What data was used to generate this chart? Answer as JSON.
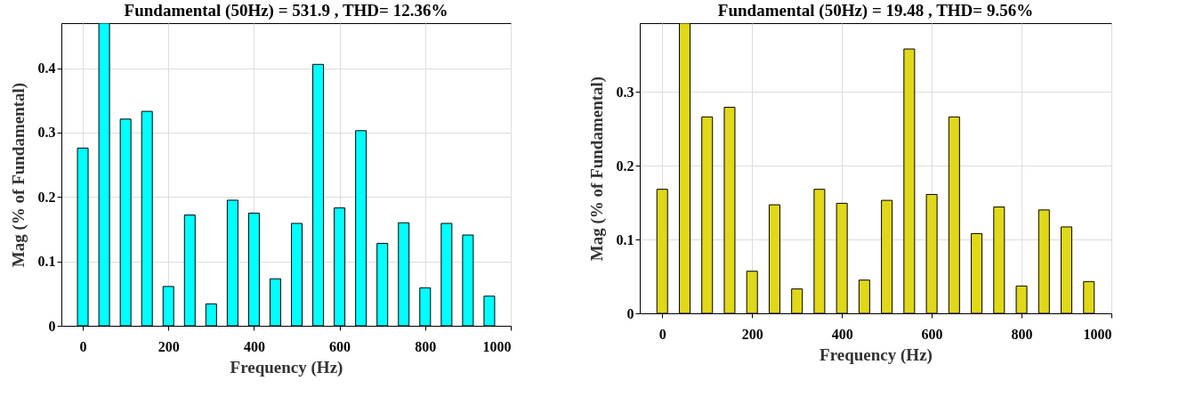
{
  "chart_data": [
    {
      "type": "bar",
      "title": "Fundamental (50Hz) = 531.9 , THD= 12.36%",
      "xlabel": "Frequency (Hz)",
      "ylabel": "Mag (% of Fundamental)",
      "x": [
        0,
        50,
        100,
        150,
        200,
        250,
        300,
        350,
        400,
        450,
        500,
        550,
        600,
        650,
        700,
        750,
        800,
        850,
        900,
        950
      ],
      "series": [
        {
          "color": "#00ffff",
          "values": [
            0.276,
            0.47,
            0.321,
            0.333,
            0.061,
            0.172,
            0.034,
            0.195,
            0.175,
            0.073,
            0.159,
            0.406,
            0.183,
            0.303,
            0.128,
            0.16,
            0.059,
            0.159,
            0.141,
            0.046
          ]
        }
      ],
      "xlim": [
        -50,
        1000
      ],
      "xticks": [
        0,
        200,
        400,
        600,
        800,
        1000
      ],
      "ylim": [
        0,
        0.47
      ],
      "yticks": [
        0,
        0.1,
        0.2,
        0.3,
        0.4
      ],
      "grid": true
    },
    {
      "type": "bar",
      "title": "Fundamental (50Hz) = 19.48 , THD= 9.56%",
      "xlabel": "Frequency (Hz)",
      "ylabel": "Mag (% of Fundamental)",
      "x": [
        0,
        50,
        100,
        150,
        200,
        250,
        300,
        350,
        400,
        450,
        500,
        550,
        600,
        650,
        700,
        750,
        800,
        850,
        900,
        950
      ],
      "series": [
        {
          "color": "#e0d818",
          "values": [
            0.168,
            0.393,
            0.266,
            0.279,
            0.057,
            0.147,
            0.033,
            0.168,
            0.149,
            0.045,
            0.153,
            0.358,
            0.161,
            0.266,
            0.108,
            0.144,
            0.037,
            0.14,
            0.117,
            0.043
          ]
        }
      ],
      "xlim": [
        -50,
        1000
      ],
      "xticks": [
        0,
        200,
        400,
        600,
        800,
        1000
      ],
      "ylim": [
        0,
        0.393
      ],
      "yticks": [
        0,
        0.1,
        0.2,
        0.3
      ],
      "grid": true
    }
  ]
}
